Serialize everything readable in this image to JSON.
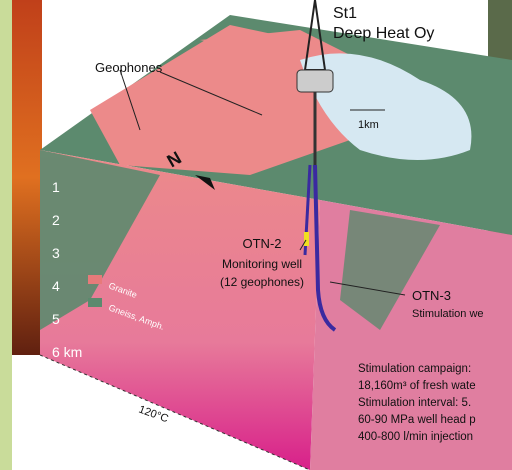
{
  "header": {
    "company": "St1",
    "company_sub": "Deep Heat Oy"
  },
  "labels": {
    "geophones": "Geophones",
    "scale": "1km",
    "compass": "N",
    "temperature": "120°C"
  },
  "depths": [
    "1",
    "2",
    "3",
    "4",
    "5",
    "6 km"
  ],
  "legend": [
    "Granite",
    "Gneiss, Amph."
  ],
  "wells": {
    "otn2": {
      "name": "OTN-2",
      "desc": "Monitoring well",
      "note": "(12 geophones)"
    },
    "otn3": {
      "name": "OTN-3",
      "desc": "Stimulation we"
    }
  },
  "campaign": [
    "Stimulation campaign:",
    "18,160m³ of fresh wate",
    "Stimulation interval: 5.",
    "60-90 MPa well head p",
    "400-800 l/min injection"
  ]
}
